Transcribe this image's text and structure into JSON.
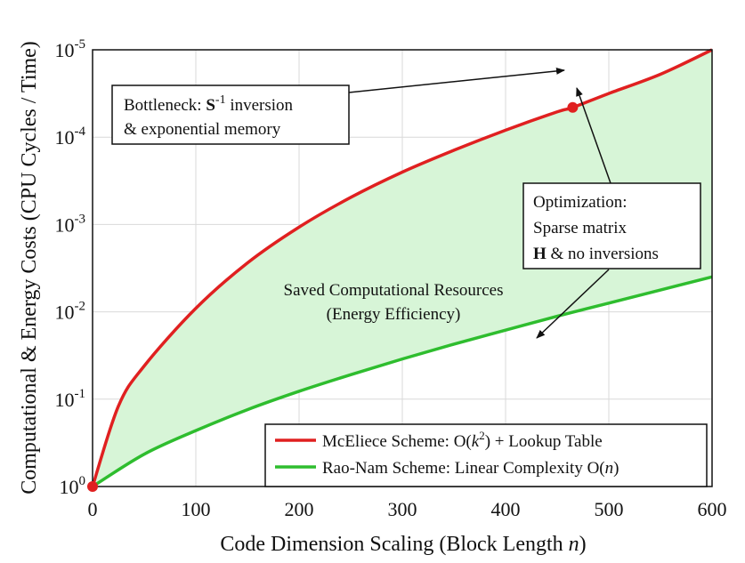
{
  "chart_data": {
    "type": "area",
    "xlabel_parts": [
      "Code Dimension Scaling (Block Length ",
      "n",
      ")"
    ],
    "ylabel": "Computational & Energy Costs (CPU Cycles / Time)",
    "xlim": [
      0,
      600
    ],
    "x_ticks": [
      "0",
      "100",
      "200",
      "300",
      "400",
      "500",
      "600"
    ],
    "y_ticks": [
      {
        "base": "10",
        "exp": "0"
      },
      {
        "base": "10",
        "exp": "-1"
      },
      {
        "base": "10",
        "exp": "-2"
      },
      {
        "base": "10",
        "exp": "-3"
      },
      {
        "base": "10",
        "exp": "-4"
      },
      {
        "base": "10",
        "exp": "-5"
      }
    ],
    "grid": true,
    "legend_position": "bottom-right",
    "series": [
      {
        "name": "McEliece Scheme: O(k²) + Lookup Table",
        "legend_parts": [
          "McEliece Scheme: O(",
          "k",
          "2",
          ") + Lookup Table"
        ],
        "color": "#e02020",
        "x": [
          0,
          25,
          50,
          100,
          150,
          200,
          250,
          300,
          350,
          400,
          450,
          465,
          500,
          550,
          600
        ],
        "y_level": [
          0,
          0.92,
          1.38,
          2.04,
          2.56,
          2.97,
          3.31,
          3.6,
          3.85,
          4.08,
          4.29,
          4.34,
          4.5,
          4.72,
          5.0
        ]
      },
      {
        "name": "Rao-Nam Scheme: Linear Complexity O(n)",
        "legend_parts": [
          "Rao-Nam Scheme: Linear Complexity O(",
          "n",
          ")"
        ],
        "color": "#2ebd2e",
        "x": [
          0,
          50,
          100,
          150,
          200,
          250,
          300,
          350,
          400,
          450,
          500,
          550,
          600
        ],
        "y_level": [
          0,
          0.37,
          0.64,
          0.88,
          1.09,
          1.28,
          1.46,
          1.63,
          1.79,
          1.95,
          2.1,
          2.25,
          2.4
        ]
      }
    ],
    "markers": [
      {
        "x": 0,
        "y_level": 0,
        "color": "#e02020"
      },
      {
        "x": 465,
        "y_level": 4.34,
        "color": "#e02020"
      }
    ],
    "fill_color": "#d7f5d7",
    "annotations": {
      "bottleneck": {
        "line1_a": "Bottleneck: ",
        "line1_bold": "S",
        "line1_sup": "-1",
        "line1_b": " inversion",
        "line2": "& exponential memory"
      },
      "optimization": {
        "line1": "Optimization:",
        "line2": "Sparse matrix",
        "line3_bold": "H",
        "line3_rest": " & no inversions"
      },
      "saved": {
        "line1": "Saved Computational Resources",
        "line2": "(Energy Efficiency)"
      }
    }
  }
}
